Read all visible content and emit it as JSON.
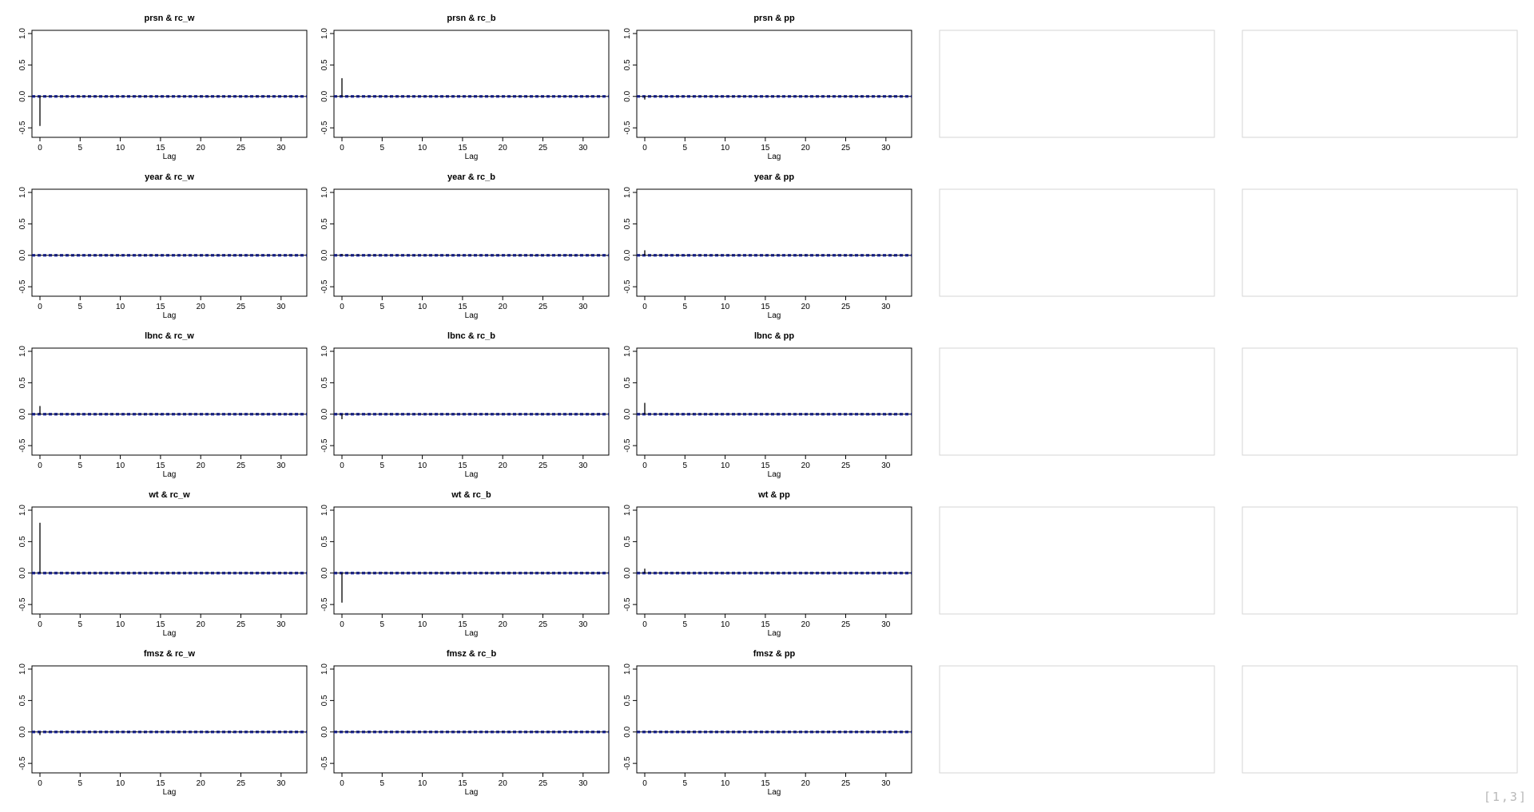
{
  "page_indicator": "[1,3]",
  "colors": {
    "axis": "#000000",
    "conf_band": "#1f2aa3",
    "empty_box": "#d6d6d6"
  },
  "chart_data": {
    "type": "bar",
    "layout_desc": "5 rows x 5 columns grid; first 3 columns are cross-correlation plots, last 2 columns empty panels",
    "xlabel": "Lag",
    "xlim": [
      0,
      33
    ],
    "ylim": [
      -0.6,
      1.0
    ],
    "xticks": [
      0,
      5,
      10,
      15,
      20,
      25,
      30
    ],
    "yticks": [
      -0.5,
      0.0,
      0.5,
      1.0
    ],
    "ytick_labels": [
      "-0.5",
      "0.0",
      "0.5",
      "1.0"
    ],
    "conf_limit": 0.012,
    "panels": [
      {
        "title": "prsn & rc_w",
        "lag0": -0.47
      },
      {
        "title": "prsn & rc_b",
        "lag0": 0.29
      },
      {
        "title": "prsn & pp",
        "lag0": -0.05
      },
      {
        "title": "year & rc_w",
        "lag0": 0.0
      },
      {
        "title": "year & rc_b",
        "lag0": 0.02
      },
      {
        "title": "year & pp",
        "lag0": 0.08
      },
      {
        "title": "lbnc & rc_w",
        "lag0": 0.13
      },
      {
        "title": "lbnc & rc_b",
        "lag0": -0.08
      },
      {
        "title": "lbnc & pp",
        "lag0": 0.18
      },
      {
        "title": "wt & rc_w",
        "lag0": 0.8
      },
      {
        "title": "wt & rc_b",
        "lag0": -0.47
      },
      {
        "title": "wt & pp",
        "lag0": 0.07
      },
      {
        "title": "fmsz & rc_w",
        "lag0": -0.05
      },
      {
        "title": "fmsz & rc_b",
        "lag0": 0.0
      },
      {
        "title": "fmsz & pp",
        "lag0": 0.0
      }
    ]
  }
}
